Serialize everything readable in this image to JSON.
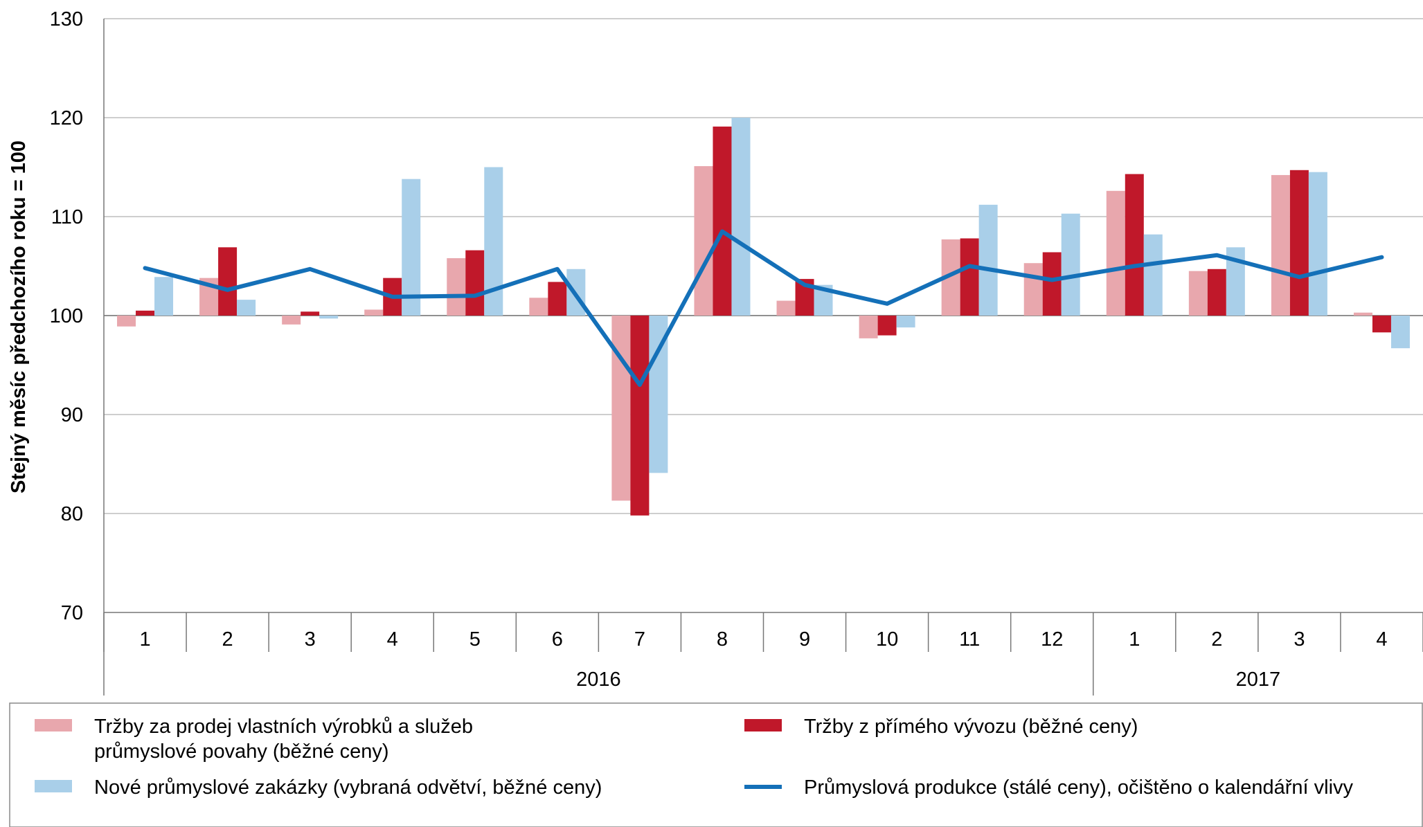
{
  "chart_data": {
    "type": "bar",
    "ylabel": "Stejný měsíc předchozího roku = 100",
    "ylim": [
      70,
      130
    ],
    "yticks": [
      70,
      80,
      90,
      100,
      110,
      120,
      130
    ],
    "baseline": 100,
    "grid": true,
    "legend_position": "bottom",
    "categories": [
      "1",
      "2",
      "3",
      "4",
      "5",
      "6",
      "7",
      "8",
      "9",
      "10",
      "11",
      "12",
      "1",
      "2",
      "3",
      "4"
    ],
    "groups": [
      {
        "label": "2016",
        "count": 12
      },
      {
        "label": "2017",
        "count": 4
      }
    ],
    "series": [
      {
        "name": "Tržby za prodej vlastních výrobků a služeb průmyslové povahy (běžné ceny)",
        "name_lines": [
          "Tržby za prodej vlastních výrobků a služeb",
          "průmyslové povahy (běžné ceny)"
        ],
        "type": "bar",
        "color": "#e8a7ad",
        "values": [
          98.9,
          103.8,
          99.1,
          100.6,
          105.8,
          101.8,
          81.3,
          115.1,
          101.5,
          97.7,
          107.7,
          105.3,
          112.6,
          104.5,
          114.2,
          100.3
        ]
      },
      {
        "name": "Tržby z přímého vývozu (běžné ceny)",
        "name_lines": [
          "Tržby z přímého vývozu (běžné ceny)"
        ],
        "type": "bar",
        "color": "#c0182a",
        "values": [
          100.5,
          106.9,
          100.4,
          103.8,
          106.6,
          103.4,
          79.8,
          119.1,
          103.7,
          98.0,
          107.8,
          106.4,
          114.3,
          104.7,
          114.7,
          98.3
        ]
      },
      {
        "name": "Nové průmyslové zakázky (vybraná odvětví, běžné ceny)",
        "name_lines": [
          "Nové průmyslové zakázky (vybraná odvětví, běžné ceny)"
        ],
        "type": "bar",
        "color": "#a9cfe9",
        "values": [
          103.9,
          101.6,
          99.7,
          113.8,
          115.0,
          104.7,
          84.1,
          120.0,
          103.1,
          98.8,
          111.2,
          110.3,
          108.2,
          106.9,
          114.5,
          96.7
        ]
      },
      {
        "name": "Průmyslová produkce (stálé ceny), očištěno o kalendářní vlivy",
        "name_lines": [
          "Průmyslová produkce (stálé ceny), očištěno o kalendářní vlivy"
        ],
        "type": "line",
        "color": "#1470b8",
        "values": [
          104.8,
          102.6,
          104.7,
          101.9,
          102.0,
          104.7,
          93.0,
          108.5,
          103.1,
          101.2,
          105.0,
          103.6,
          105.0,
          106.1,
          103.9,
          105.9
        ]
      }
    ]
  }
}
